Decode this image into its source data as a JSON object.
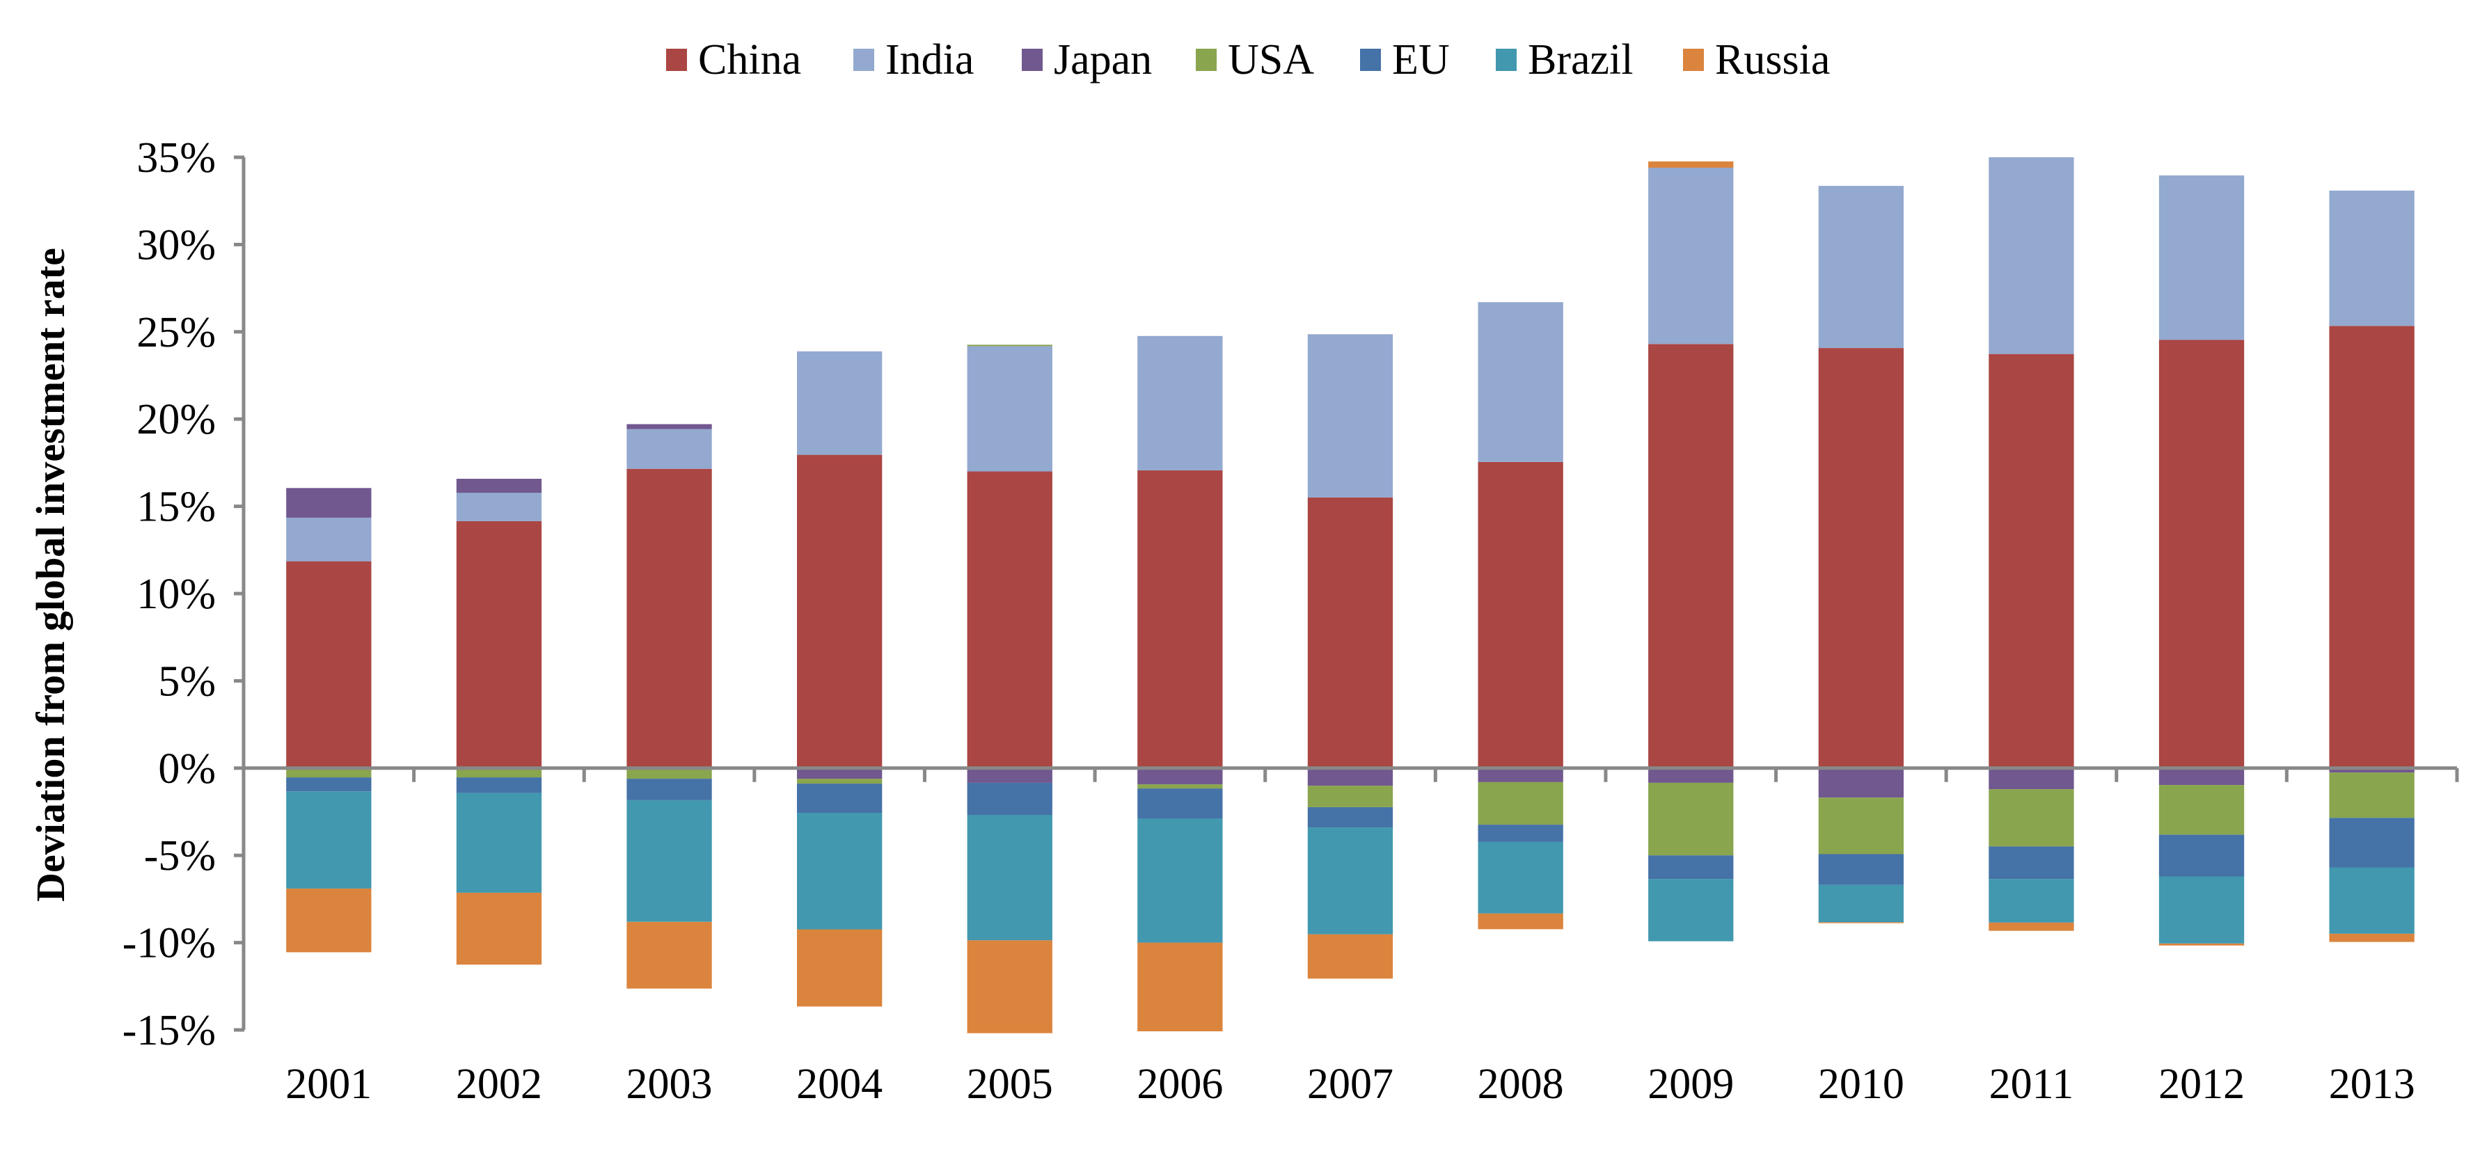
{
  "chart_data": {
    "type": "bar",
    "stacked": true,
    "title": "",
    "xlabel": "",
    "ylabel": "Deviation from global investment rate",
    "ylim": [
      -15,
      35
    ],
    "yticks": [
      35,
      30,
      25,
      20,
      15,
      10,
      5,
      0,
      -5,
      -10,
      -15
    ],
    "ytick_labels": [
      "35%",
      "30%",
      "25%",
      "20%",
      "15%",
      "10%",
      "5%",
      "0%",
      "-5%",
      "-10%",
      "-15%"
    ],
    "grid": false,
    "legend_position": "top-center",
    "categories": [
      "2001",
      "2002",
      "2003",
      "2004",
      "2005",
      "2006",
      "2007",
      "2008",
      "2009",
      "2010",
      "2011",
      "2012",
      "2013"
    ],
    "series": [
      {
        "name": "China",
        "color": "#AA4643",
        "values": [
          11.85,
          14.15,
          17.15,
          17.95,
          17.0,
          17.06,
          15.51,
          17.54,
          24.3,
          24.07,
          23.73,
          24.54,
          25.34
        ]
      },
      {
        "name": "India",
        "color": "#93A9CF",
        "values": [
          2.5,
          1.63,
          2.28,
          5.93,
          7.18,
          7.7,
          9.35,
          9.16,
          10.1,
          9.29,
          11.27,
          9.42,
          7.75
        ]
      },
      {
        "name": "Japan",
        "color": "#71588F",
        "values": [
          1.7,
          0.8,
          0.28,
          -0.61,
          -0.84,
          -0.93,
          -1.01,
          -0.8,
          -0.84,
          -1.69,
          -1.21,
          -0.97,
          -0.25
        ]
      },
      {
        "name": "USA",
        "color": "#89A54E",
        "values": [
          -0.53,
          -0.53,
          -0.61,
          -0.28,
          0.08,
          -0.24,
          -1.23,
          -2.44,
          -4.16,
          -3.24,
          -3.28,
          -2.84,
          -2.6
        ]
      },
      {
        "name": "EU",
        "color": "#4572A7",
        "values": [
          -0.8,
          -0.89,
          -1.23,
          -1.67,
          -1.84,
          -1.71,
          -1.16,
          -0.99,
          -1.35,
          -1.76,
          -1.86,
          -2.4,
          -2.84
        ]
      },
      {
        "name": "Brazil",
        "color": "#4198AF",
        "values": [
          -5.57,
          -5.72,
          -6.97,
          -6.68,
          -7.19,
          -7.12,
          -6.12,
          -4.1,
          -3.57,
          -2.14,
          -2.5,
          -3.84,
          -3.8
        ]
      },
      {
        "name": "Russia",
        "color": "#DB843D",
        "values": [
          -3.65,
          -4.12,
          -3.82,
          -4.42,
          -5.32,
          -5.08,
          -2.54,
          -0.9,
          0.36,
          -0.05,
          -0.47,
          -0.11,
          -0.47
        ]
      }
    ]
  },
  "colors": {
    "axis": "#888888",
    "text": "#000000"
  }
}
